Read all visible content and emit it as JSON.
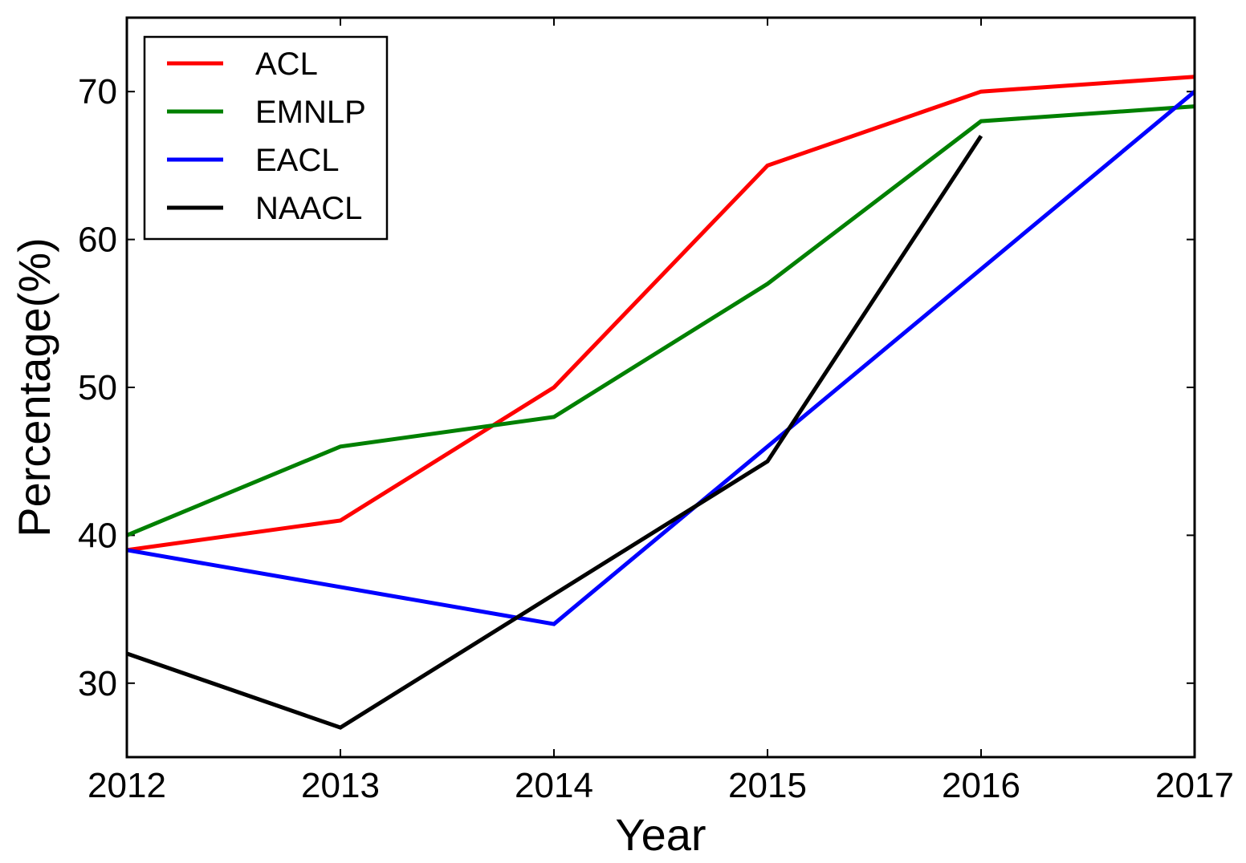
{
  "chart_data": {
    "type": "line",
    "x": [
      2012,
      2013,
      2014,
      2015,
      2016,
      2017
    ],
    "x_tick_labels": [
      "2012",
      "2013",
      "2014",
      "2015",
      "2016",
      "2017"
    ],
    "y_ticks": [
      30,
      40,
      50,
      60,
      70
    ],
    "y_tick_labels": [
      "30",
      "40",
      "50",
      "60",
      "70"
    ],
    "xlim": [
      2012,
      2017
    ],
    "ylim": [
      25,
      75
    ],
    "xlabel": "Year",
    "ylabel": "Percentage(%)",
    "grid": false,
    "legend_position": "top-left",
    "series": [
      {
        "name": "ACL",
        "color": "#ff0000",
        "x": [
          2012,
          2013,
          2014,
          2015,
          2016,
          2017
        ],
        "values": [
          39,
          41,
          50,
          65,
          70,
          71
        ]
      },
      {
        "name": "EMNLP",
        "color": "#008000",
        "x": [
          2012,
          2013,
          2014,
          2015,
          2016,
          2017
        ],
        "values": [
          40,
          46,
          48,
          57,
          68,
          69
        ]
      },
      {
        "name": "EACL",
        "color": "#0000ff",
        "x": [
          2012,
          2014,
          2017
        ],
        "values": [
          39,
          34,
          70
        ]
      },
      {
        "name": "NAACL",
        "color": "#000000",
        "x": [
          2012,
          2013,
          2015,
          2016
        ],
        "values": [
          32,
          27,
          45,
          67
        ]
      }
    ]
  }
}
